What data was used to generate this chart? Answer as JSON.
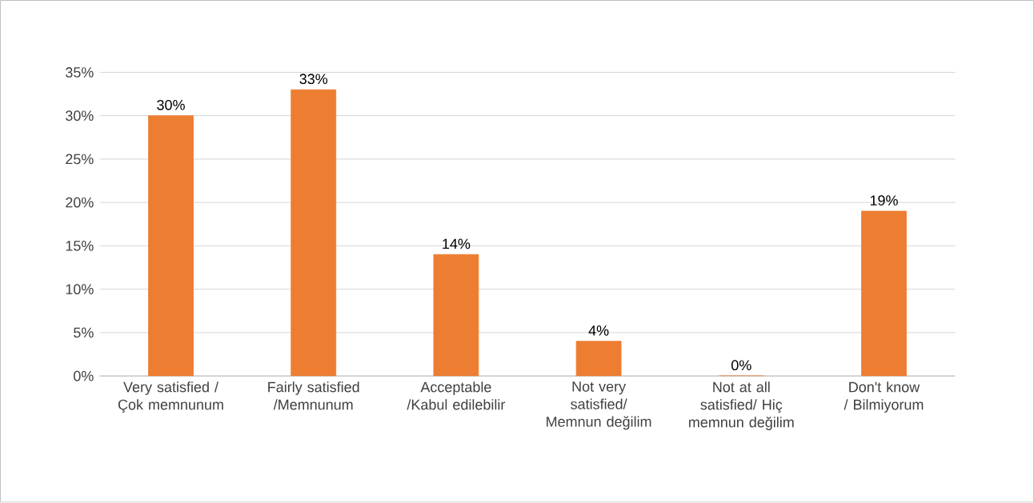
{
  "chart_data": {
    "type": "bar",
    "categories": [
      "Very satisfied / Çok memnunum",
      "Fairly satisfied /Memnunum",
      "Acceptable /Kabul edilebilir",
      "Not very satisfied/ Memnun değilim",
      "Not at all satisfied/ Hiç memnun değilim",
      "Don't know / Bilmiyorum"
    ],
    "values": [
      30,
      33,
      14,
      4,
      0,
      19
    ],
    "value_labels": [
      "30%",
      "33%",
      "14%",
      "4%",
      "0%",
      "19%"
    ],
    "color": "#ed7d31",
    "ylim": [
      0,
      35
    ],
    "yticks": [
      {
        "value": 0,
        "label": "0%"
      },
      {
        "value": 5,
        "label": "5%"
      },
      {
        "value": 10,
        "label": "10%"
      },
      {
        "value": 15,
        "label": "15%"
      },
      {
        "value": 20,
        "label": "20%"
      },
      {
        "value": 25,
        "label": "25%"
      },
      {
        "value": 30,
        "label": "30%"
      },
      {
        "value": 35,
        "label": "35%"
      }
    ],
    "grid": "y"
  }
}
